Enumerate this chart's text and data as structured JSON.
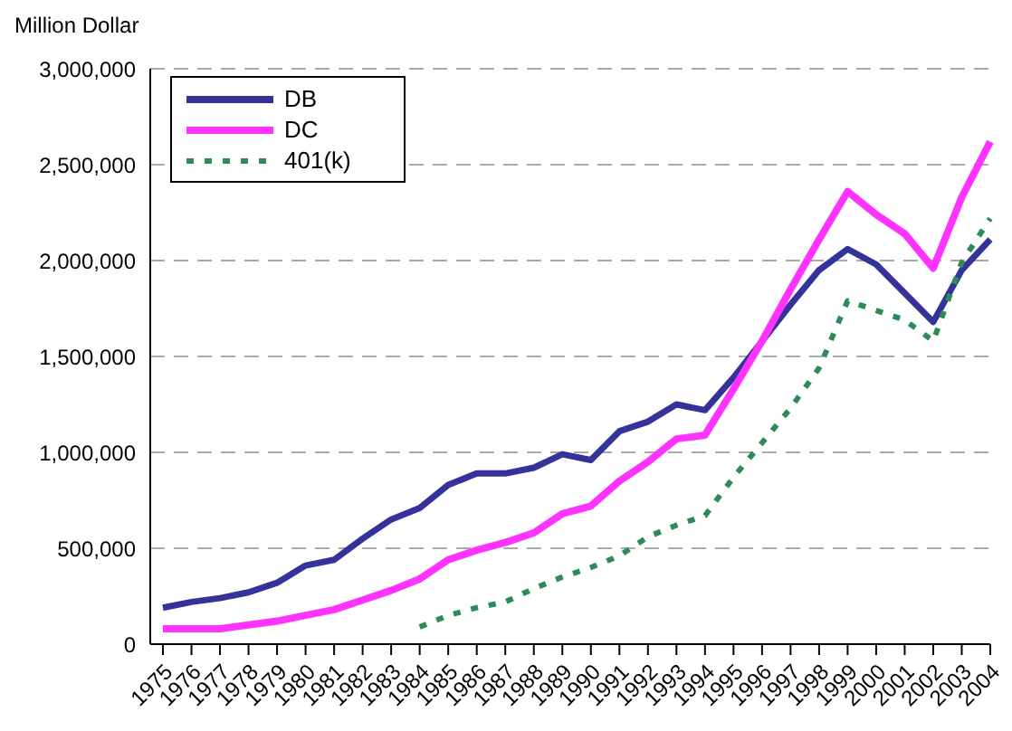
{
  "chart_data": {
    "type": "line",
    "ylabel": "Million Dollar",
    "categories": [
      "1975",
      "1976",
      "1977",
      "1978",
      "1979",
      "1980",
      "1981",
      "1982",
      "1983",
      "1984",
      "1985",
      "1986",
      "1987",
      "1988",
      "1989",
      "1990",
      "1991",
      "1992",
      "1993",
      "1994",
      "1995",
      "1996",
      "1997",
      "1998",
      "1999",
      "2000",
      "2001",
      "2002",
      "2003",
      "2004"
    ],
    "series": [
      {
        "name": "DB",
        "color": "#333399",
        "line_style": "solid",
        "values": [
          190000,
          220000,
          240000,
          270000,
          320000,
          410000,
          440000,
          550000,
          650000,
          710000,
          830000,
          890000,
          890000,
          920000,
          990000,
          960000,
          1110000,
          1160000,
          1250000,
          1220000,
          1390000,
          1580000,
          1770000,
          1950000,
          2060000,
          1980000,
          1830000,
          1680000,
          1950000,
          2110000
        ]
      },
      {
        "name": "DC",
        "color": "#ff33ff",
        "line_style": "solid",
        "values": [
          80000,
          80000,
          80000,
          100000,
          120000,
          150000,
          180000,
          230000,
          280000,
          340000,
          440000,
          490000,
          530000,
          580000,
          680000,
          720000,
          850000,
          950000,
          1070000,
          1090000,
          1330000,
          1580000,
          1850000,
          2110000,
          2360000,
          2240000,
          2140000,
          1960000,
          2330000,
          2620000
        ]
      },
      {
        "name": "401(k)",
        "color": "#2e8b57",
        "line_style": "dotted",
        "values": [
          null,
          null,
          null,
          null,
          null,
          null,
          null,
          null,
          null,
          90000,
          150000,
          190000,
          220000,
          290000,
          350000,
          400000,
          460000,
          560000,
          620000,
          670000,
          870000,
          1050000,
          1230000,
          1440000,
          1790000,
          1740000,
          1690000,
          1580000,
          1990000,
          2220000
        ]
      }
    ],
    "ylim": [
      0,
      3000000
    ],
    "yticks": [
      {
        "value": 0,
        "label": "0"
      },
      {
        "value": 500000,
        "label": "500,000"
      },
      {
        "value": 1000000,
        "label": "1,000,000"
      },
      {
        "value": 1500000,
        "label": "1,500,000"
      },
      {
        "value": 2000000,
        "label": "2,000,000"
      },
      {
        "value": 2500000,
        "label": "2,500,000"
      },
      {
        "value": 3000000,
        "label": "3,000,000"
      }
    ],
    "grid": "y",
    "legend": "top left",
    "marker": "none"
  }
}
